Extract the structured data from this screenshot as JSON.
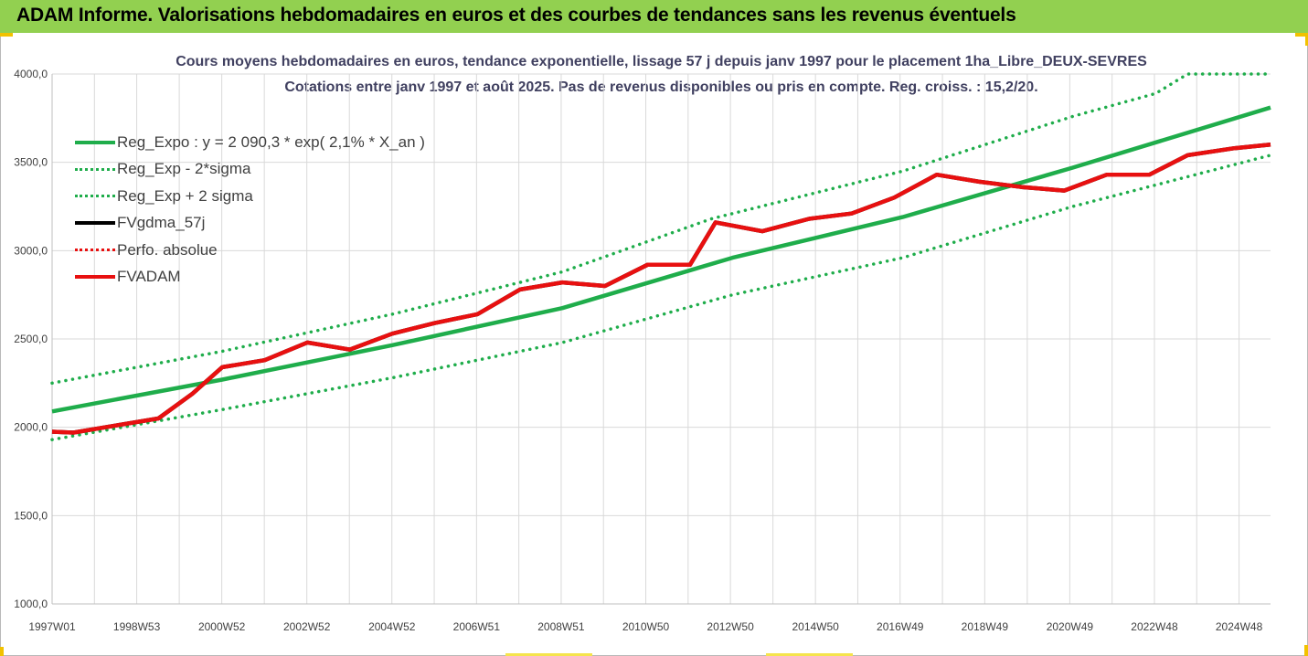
{
  "banner": {
    "title": "ADAM Informe. Valorisations hebdomadaires en euros et des courbes de tendances sans les revenus éventuels"
  },
  "colors": {
    "banner": "#92d050",
    "reg_expo": "#1fad4b",
    "sigma": "#1fad4b",
    "fvgdma": "#000000",
    "perfo": "#e81010",
    "fvadam": "#e81010"
  },
  "chart_data": {
    "type": "line",
    "title": "Cours moyens hebdomadaires en euros, tendance exponentielle, lissage 57 j depuis janv 1997 pour le placement 1ha_Libre_DEUX-SEVRES",
    "subtitle": "Cotations entre janv 1997 et août 2025. Pas de revenus disponibles ou pris en compte. Reg. croiss. : 15,2/20.",
    "xlabel": "",
    "ylabel": "",
    "ylim": [
      1000,
      4000
    ],
    "y_ticks": [
      "1000,0",
      "1500,0",
      "2000,0",
      "2500,0",
      "3000,0",
      "3500,0",
      "4000,0"
    ],
    "x_range_years": [
      1997.0,
      2025.65
    ],
    "x_ticks": [
      {
        "label": "1997W01",
        "year": 1997.0
      },
      {
        "label": "1998W53",
        "year": 1998.99
      },
      {
        "label": "2000W52",
        "year": 2000.99
      },
      {
        "label": "2002W52",
        "year": 2002.99
      },
      {
        "label": "2004W52",
        "year": 2004.99
      },
      {
        "label": "2006W51",
        "year": 2006.98
      },
      {
        "label": "2008W51",
        "year": 2008.97
      },
      {
        "label": "2010W50",
        "year": 2010.96
      },
      {
        "label": "2012W50",
        "year": 2012.95
      },
      {
        "label": "2014W50",
        "year": 2014.95
      },
      {
        "label": "2016W49",
        "year": 2016.94
      },
      {
        "label": "2018W49",
        "year": 2018.93
      },
      {
        "label": "2020W49",
        "year": 2020.93
      },
      {
        "label": "2022W48",
        "year": 2022.92
      },
      {
        "label": "2024W48",
        "year": 2024.91
      }
    ],
    "grid": true,
    "legend_position": "top-left",
    "series": [
      {
        "name": "Reg_Expo : y = 2 090,3 * exp( 2,1% *  X_an )",
        "style": "solid",
        "color": "#1fad4b",
        "x": [
          1997.0,
          2001.0,
          2005.0,
          2009.0,
          2013.0,
          2017.0,
          2021.0,
          2025.65
        ],
        "y": [
          2090,
          2270,
          2465,
          2675,
          2960,
          3190,
          3470,
          3810
        ]
      },
      {
        "name": "Reg_Exp - 2*sigma",
        "style": "dotted",
        "color": "#1fad4b",
        "x": [
          1997.0,
          2001.0,
          2005.0,
          2009.0,
          2013.0,
          2017.0,
          2021.0,
          2025.65
        ],
        "y": [
          1930,
          2100,
          2280,
          2480,
          2750,
          2960,
          3250,
          3540
        ]
      },
      {
        "name": "Reg_Exp + 2 sigma",
        "style": "dotted",
        "color": "#1fad4b",
        "x": [
          1997.0,
          2001.0,
          2005.0,
          2009.0,
          2012.5,
          2017.0,
          2021.0,
          2022.95,
          2023.7,
          2025.65
        ],
        "y": [
          2250,
          2430,
          2640,
          2880,
          3180,
          3450,
          3760,
          3890,
          4000,
          4000
        ]
      },
      {
        "name": "FVgdma_57j",
        "style": "solid",
        "color": "#000000",
        "x": [
          1997.0,
          1997.5,
          1998.5,
          1999.5,
          2000.3,
          2001.0,
          2002.0,
          2003.0,
          2004.0,
          2005.0,
          2006.0,
          2007.0,
          2008.0,
          2009.0,
          2010.0,
          2011.0,
          2012.0,
          2012.6,
          2013.7,
          2014.8,
          2015.8,
          2016.8,
          2017.8,
          2018.8,
          2019.8,
          2020.8,
          2021.8,
          2022.8,
          2023.7,
          2024.8,
          2025.65
        ],
        "y": [
          1975,
          1970,
          2010,
          2050,
          2190,
          2340,
          2380,
          2480,
          2440,
          2530,
          2590,
          2640,
          2780,
          2820,
          2800,
          2920,
          2920,
          3160,
          3110,
          3180,
          3210,
          3300,
          3430,
          3390,
          3360,
          3340,
          3430,
          3430,
          3540,
          3580,
          3600
        ]
      },
      {
        "name": "Perfo. absolue",
        "style": "dotted",
        "color": "#e81010",
        "x": [],
        "y": []
      },
      {
        "name": "FVADAM",
        "style": "solid",
        "color": "#e81010",
        "x": [
          1997.0,
          1997.5,
          1998.5,
          1999.5,
          2000.3,
          2001.0,
          2002.0,
          2003.0,
          2004.0,
          2005.0,
          2006.0,
          2007.0,
          2008.0,
          2009.0,
          2010.0,
          2011.0,
          2012.0,
          2012.6,
          2013.7,
          2014.8,
          2015.8,
          2016.8,
          2017.8,
          2018.8,
          2019.8,
          2020.8,
          2021.8,
          2022.8,
          2023.7,
          2024.8,
          2025.65
        ],
        "y": [
          1975,
          1970,
          2010,
          2050,
          2190,
          2340,
          2380,
          2480,
          2440,
          2530,
          2590,
          2640,
          2780,
          2820,
          2800,
          2920,
          2920,
          3160,
          3110,
          3180,
          3210,
          3300,
          3430,
          3390,
          3360,
          3340,
          3430,
          3430,
          3540,
          3580,
          3600
        ]
      }
    ]
  }
}
